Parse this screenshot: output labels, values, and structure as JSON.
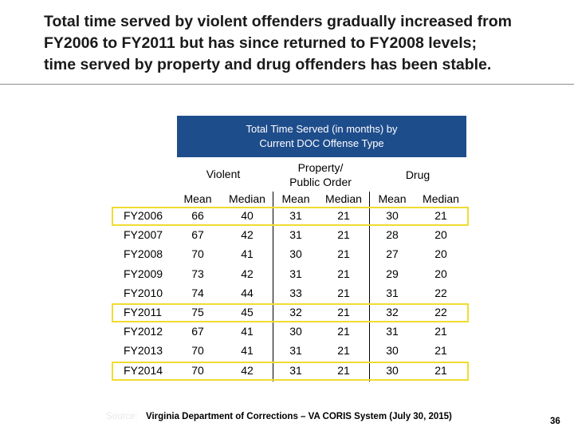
{
  "headline": {
    "line1": "Total time served by violent offenders gradually increased from",
    "line2": "FY2006 to FY2011 but has since returned to FY2008 levels;",
    "line3": "time served by property and drug offenders has been stable."
  },
  "table": {
    "title_line1": "Total Time Served (in months) by",
    "title_line2": "Current DOC Offense Type",
    "groups": {
      "violent": "Violent",
      "property_line1": "Property/",
      "property_line2": "Public Order",
      "drug": "Drug"
    },
    "columns": [
      "Mean",
      "Median",
      "Mean",
      "Median",
      "Mean",
      "Median"
    ],
    "rows": [
      {
        "year": "FY2006",
        "values": [
          "66",
          "40",
          "31",
          "21",
          "30",
          "21"
        ]
      },
      {
        "year": "FY2007",
        "values": [
          "67",
          "42",
          "31",
          "21",
          "28",
          "20"
        ]
      },
      {
        "year": "FY2008",
        "values": [
          "70",
          "41",
          "30",
          "21",
          "27",
          "20"
        ]
      },
      {
        "year": "FY2009",
        "values": [
          "73",
          "42",
          "31",
          "21",
          "29",
          "20"
        ]
      },
      {
        "year": "FY2010",
        "values": [
          "74",
          "44",
          "33",
          "21",
          "31",
          "22"
        ]
      },
      {
        "year": "FY2011",
        "values": [
          "75",
          "45",
          "32",
          "21",
          "32",
          "22"
        ]
      },
      {
        "year": "FY2012",
        "values": [
          "67",
          "41",
          "30",
          "21",
          "31",
          "21"
        ]
      },
      {
        "year": "FY2013",
        "values": [
          "70",
          "41",
          "31",
          "21",
          "30",
          "21"
        ]
      },
      {
        "year": "FY2014",
        "values": [
          "70",
          "42",
          "31",
          "21",
          "30",
          "21"
        ]
      }
    ],
    "highlighted_rows": [
      "FY2006",
      "FY2011",
      "FY2014"
    ]
  },
  "footer": {
    "source_label": "Source:",
    "source": "Virginia Department of Corrections – VA CORIS System (July 30, 2015)",
    "page_number": "36"
  },
  "colors": {
    "banner": "#1e4d8c",
    "highlight": "#f0dc32"
  }
}
